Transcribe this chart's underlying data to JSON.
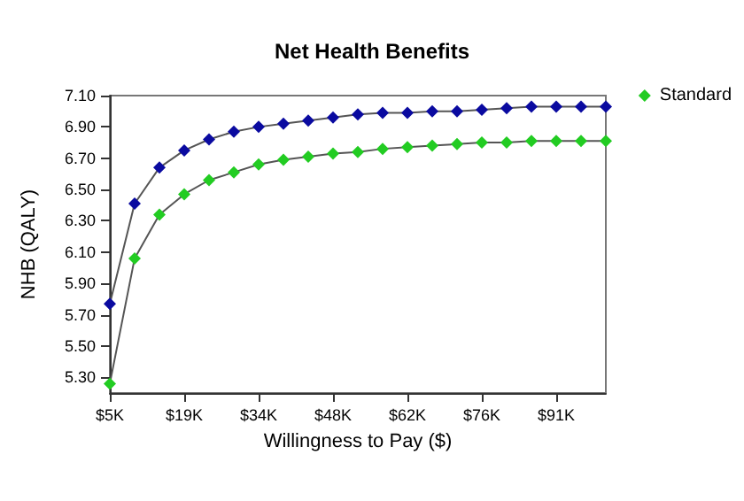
{
  "chart_data": {
    "type": "line",
    "title": "Net Health Benefits",
    "xlabel": "Willingness to Pay ($)",
    "ylabel": "NHB (QALY)",
    "x": [
      5000,
      9750,
      14500,
      19250,
      24000,
      28750,
      33500,
      38250,
      43000,
      47750,
      52500,
      57250,
      62000,
      66750,
      71500,
      76250,
      81000,
      85750,
      90500,
      95250,
      100000
    ],
    "series": [
      {
        "name": "Standard",
        "color": "#22cc22",
        "values": [
          5.26,
          6.06,
          6.34,
          6.47,
          6.56,
          6.61,
          6.66,
          6.69,
          6.71,
          6.73,
          6.74,
          6.76,
          6.77,
          6.78,
          6.79,
          6.8,
          6.8,
          6.81,
          6.81,
          6.81,
          6.81
        ]
      },
      {
        "color": "#0a0aa0",
        "values": [
          5.77,
          6.41,
          6.64,
          6.75,
          6.82,
          6.87,
          6.9,
          6.92,
          6.94,
          6.96,
          6.98,
          6.99,
          6.99,
          7.0,
          7.0,
          7.01,
          7.02,
          7.03,
          7.03,
          7.03,
          7.03
        ]
      }
    ],
    "xlim": [
      5000,
      100000
    ],
    "xticks": [
      {
        "value": 5000,
        "label": "$5K"
      },
      {
        "value": 19250,
        "label": "$19K"
      },
      {
        "value": 33500,
        "label": "$34K"
      },
      {
        "value": 47750,
        "label": "$48K"
      },
      {
        "value": 62000,
        "label": "$62K"
      },
      {
        "value": 76250,
        "label": "$76K"
      },
      {
        "value": 90500,
        "label": "$91K"
      }
    ],
    "ylim": [
      5.2,
      7.1
    ],
    "yticks": [
      {
        "value": 5.3,
        "label": "5.30"
      },
      {
        "value": 5.5,
        "label": "5.50"
      },
      {
        "value": 5.7,
        "label": "5.70"
      },
      {
        "value": 5.9,
        "label": "5.90"
      },
      {
        "value": 6.1,
        "label": "6.10"
      },
      {
        "value": 6.3,
        "label": "6.30"
      },
      {
        "value": 6.5,
        "label": "6.50"
      },
      {
        "value": 6.7,
        "label": "6.70"
      },
      {
        "value": 6.9,
        "label": "6.90"
      },
      {
        "value": 7.1,
        "label": "7.10"
      }
    ],
    "grid": false,
    "legend": "top right",
    "marker": "diamond",
    "line_style": "solid"
  }
}
